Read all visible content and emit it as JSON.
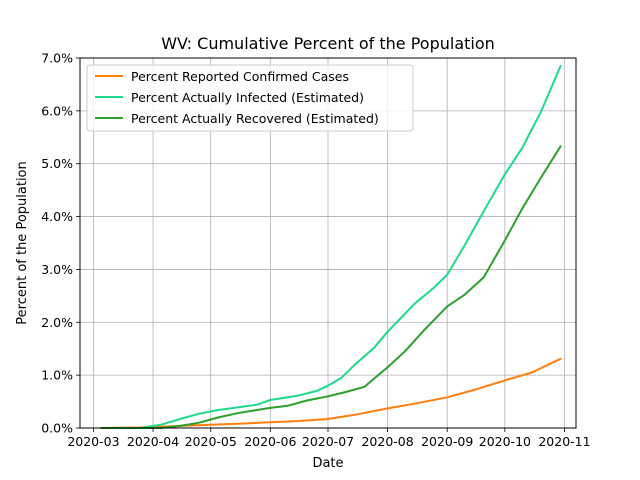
{
  "chart_data": {
    "type": "line",
    "title": "WV: Cumulative Percent of the Population",
    "xlabel": "Date",
    "ylabel": "Percent of the Population",
    "xlim": [
      "2020-02-23",
      "2020-11-07"
    ],
    "ylim": [
      0,
      7.0
    ],
    "x_ticks": [
      "2020-03",
      "2020-04",
      "2020-05",
      "2020-06",
      "2020-07",
      "2020-08",
      "2020-09",
      "2020-10",
      "2020-11"
    ],
    "y_ticks": [
      "0.0%",
      "1.0%",
      "2.0%",
      "3.0%",
      "4.0%",
      "5.0%",
      "6.0%",
      "7.0%"
    ],
    "grid": true,
    "legend_position": "upper-left",
    "series": [
      {
        "name": "Percent Reported Confirmed Cases",
        "color": "#ff7f0e",
        "x": [
          "2020-03-05",
          "2020-03-25",
          "2020-04-15",
          "2020-05-01",
          "2020-05-15",
          "2020-06-01",
          "2020-06-15",
          "2020-07-01",
          "2020-07-15",
          "2020-08-01",
          "2020-08-15",
          "2020-09-01",
          "2020-09-15",
          "2020-10-01",
          "2020-10-15",
          "2020-10-30"
        ],
        "y": [
          0.0,
          0.01,
          0.04,
          0.06,
          0.08,
          0.11,
          0.13,
          0.17,
          0.25,
          0.37,
          0.46,
          0.58,
          0.72,
          0.9,
          1.05,
          1.31
        ]
      },
      {
        "name": "Percent Actually Infected (Estimated)",
        "color": "#1ed98a",
        "x": [
          "2020-03-05",
          "2020-03-25",
          "2020-04-05",
          "2020-04-15",
          "2020-04-25",
          "2020-05-05",
          "2020-05-15",
          "2020-05-25",
          "2020-06-01",
          "2020-06-15",
          "2020-06-25",
          "2020-07-01",
          "2020-07-08",
          "2020-07-15",
          "2020-07-25",
          "2020-08-01",
          "2020-08-15",
          "2020-08-25",
          "2020-09-01",
          "2020-09-10",
          "2020-09-20",
          "2020-10-01",
          "2020-10-10",
          "2020-10-20",
          "2020-10-30"
        ],
        "y": [
          0.0,
          0.0,
          0.06,
          0.17,
          0.27,
          0.34,
          0.39,
          0.44,
          0.53,
          0.61,
          0.7,
          0.8,
          0.95,
          1.2,
          1.52,
          1.82,
          2.35,
          2.65,
          2.9,
          3.45,
          4.1,
          4.8,
          5.3,
          6.0,
          6.85
        ]
      },
      {
        "name": "Percent Actually Recovered (Estimated)",
        "color": "#2ca02c",
        "x": [
          "2020-03-05",
          "2020-04-05",
          "2020-04-15",
          "2020-04-25",
          "2020-05-05",
          "2020-05-15",
          "2020-05-25",
          "2020-06-01",
          "2020-06-10",
          "2020-06-20",
          "2020-07-01",
          "2020-07-10",
          "2020-07-20",
          "2020-08-01",
          "2020-08-10",
          "2020-08-20",
          "2020-09-01",
          "2020-09-10",
          "2020-09-20",
          "2020-10-01",
          "2020-10-10",
          "2020-10-20",
          "2020-10-30"
        ],
        "y": [
          0.0,
          0.0,
          0.04,
          0.1,
          0.2,
          0.28,
          0.34,
          0.38,
          0.42,
          0.52,
          0.6,
          0.68,
          0.78,
          1.15,
          1.45,
          1.85,
          2.3,
          2.52,
          2.85,
          3.55,
          4.15,
          4.75,
          5.33
        ]
      }
    ]
  }
}
